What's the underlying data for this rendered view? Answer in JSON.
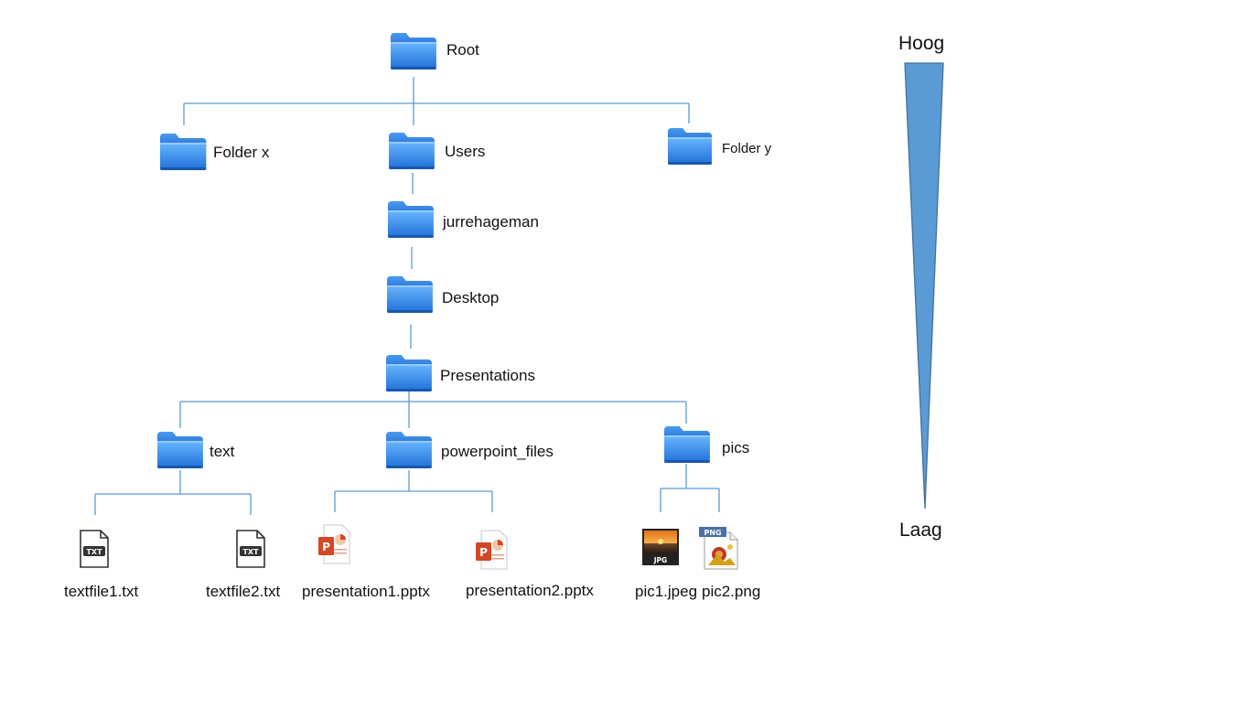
{
  "tree": {
    "root": "Root",
    "level1": [
      "Folder x",
      "Users",
      "Folder y"
    ],
    "users_child": "jurrehageman",
    "home_child": "Desktop",
    "desktop_child": "Presentations",
    "presentations_children": [
      "text",
      "powerpoint_files",
      "pics"
    ],
    "text_files": [
      "textfile1.txt",
      "textfile2.txt"
    ],
    "pptx_files": [
      "presentation1.pptx",
      "presentation2.pptx"
    ],
    "pic_files": [
      "pic1.jpeg",
      "pic2.png"
    ]
  },
  "scale": {
    "high": "Hoog",
    "low": "Laag",
    "color": "#5b9bd5"
  },
  "icons": {
    "txt_badge": "TXT",
    "ppt_letter": "P",
    "jpg_badge": "JPG",
    "png_badge": "PNG"
  },
  "colors": {
    "folder": "#3a86e6",
    "line": "#5b9bd5",
    "ppt": "#d24726"
  }
}
